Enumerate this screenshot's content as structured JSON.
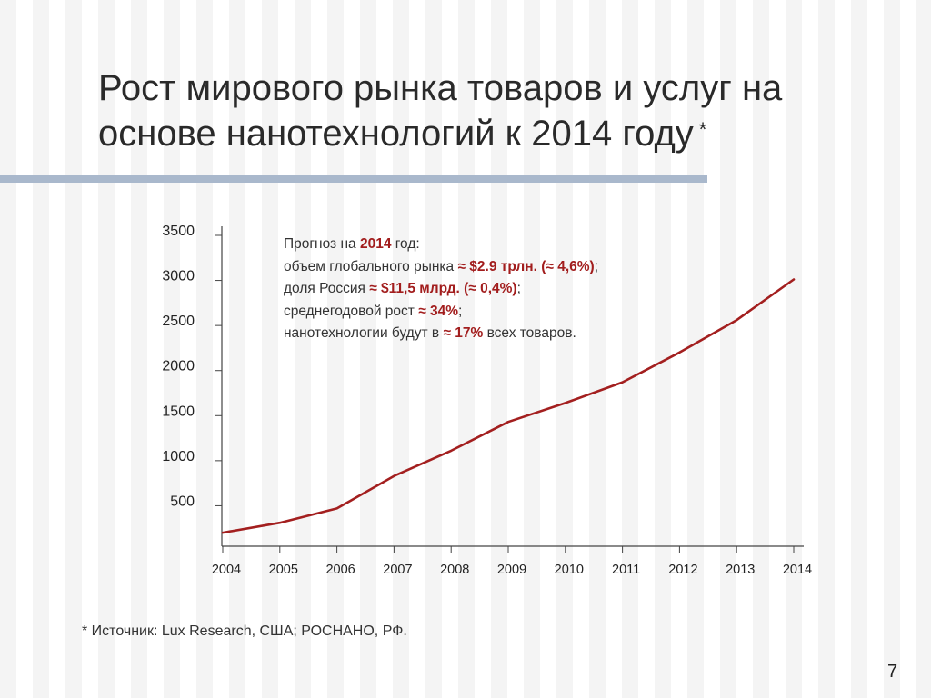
{
  "title": {
    "line1": "Рост мирового рынка товаров и услуг на",
    "line2": "основе нанотехнологий к 2014 году",
    "asterisk": "*"
  },
  "annotation": {
    "l1_pre": "Прогноз на ",
    "l1_year": "2014",
    "l1_post": " год:",
    "l2_pre": "объем глобального рынка ",
    "l2_val": "≈ $2.9 трлн. (≈ 4,6%)",
    "l2_post": ";",
    "l3_pre": "доля Россия ",
    "l3_val": "≈ $11,5 млрд. (≈ 0,4%)",
    "l3_post": ";",
    "l4_pre": "среднегодовой рост ",
    "l4_val": "≈ 34%",
    "l4_post": ";",
    "l5_pre": "нанотехнологии  будут в ",
    "l5_val": "≈ 17%",
    "l5_post": " всех товаров."
  },
  "source": "* Источник: Lux Research, США; РОСНАНО, РФ.",
  "page_number": "7",
  "colors": {
    "line": "#a31f1f",
    "accent_text": "#a21d1d",
    "title_bar": "#a9b8cc"
  },
  "chart_data": {
    "type": "line",
    "title": "",
    "xlabel": "",
    "ylabel": "",
    "x": [
      "2004",
      "2005",
      "2006",
      "2007",
      "2008",
      "2009",
      "2010",
      "2011",
      "2012",
      "2013",
      "2014"
    ],
    "y_ticks": [
      "3500",
      "3000",
      "2500",
      "2000",
      "1500",
      "1000",
      "500"
    ],
    "y_tick_values": [
      3500,
      3000,
      2500,
      2000,
      1500,
      1000,
      500
    ],
    "ylim": [
      0,
      3500
    ],
    "grid": false,
    "series": [
      {
        "values": [
          150,
          260,
          420,
          780,
          1060,
          1380,
          1590,
          1820,
          2150,
          2510,
          2960
        ]
      }
    ]
  }
}
